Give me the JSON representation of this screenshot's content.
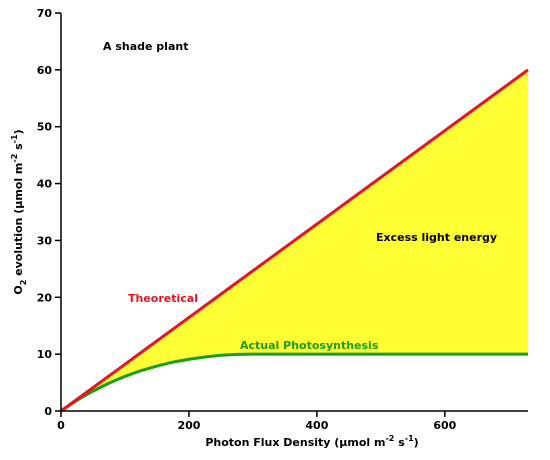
{
  "chart_data": {
    "type": "area",
    "xlabel": "Photon Flux Density (μmol m",
    "xlabel_sup1": "-2",
    "xlabel_mid": " s",
    "xlabel_sup2": "-1",
    "xlabel_end": ")",
    "ylabel_o": "O",
    "ylabel_sub": "2",
    "ylabel_rest": " evolution (μmol m",
    "ylabel_sup1": "-2",
    "ylabel_mid": " s",
    "ylabel_sup2": "-1",
    "ylabel_end": ")",
    "xlim": [
      0,
      730
    ],
    "ylim": [
      0,
      70
    ],
    "x_ticks": [
      0,
      200,
      400,
      600
    ],
    "y_ticks": [
      0,
      10,
      20,
      30,
      40,
      50,
      60,
      70
    ],
    "x_tick_labels": [
      "0",
      "200",
      "400",
      "600"
    ],
    "y_tick_labels": [
      "0",
      "10",
      "20",
      "30",
      "40",
      "50",
      "60",
      "70"
    ],
    "grid": false,
    "series": [
      {
        "name": "Theoretical",
        "color": "#e8141e",
        "x": [
          0,
          730
        ],
        "y": [
          0,
          60
        ]
      },
      {
        "name": "Actual  Photosynthesis",
        "color": "#179c17",
        "x": [
          0,
          25,
          50,
          75,
          100,
          125,
          150,
          175,
          200,
          225,
          250,
          275,
          300,
          350,
          400,
          450,
          500,
          550,
          600,
          650,
          700,
          730
        ],
        "y": [
          0,
          1.9,
          3.5,
          4.9,
          6.1,
          7.1,
          7.9,
          8.6,
          9.1,
          9.5,
          9.8,
          9.95,
          10,
          10,
          10,
          10,
          10,
          10,
          10,
          10,
          10,
          10
        ]
      }
    ],
    "fill_region": {
      "label": "Excess light energy",
      "color": "#ffff33",
      "between": [
        "Theoretical",
        "Actual  Photosynthesis"
      ]
    },
    "annotations": [
      {
        "text": "A shade plant",
        "color": "#000000"
      },
      {
        "text": "Excess light energy",
        "color": "#000000"
      },
      {
        "text": "Theoretical",
        "color": "#e8141e"
      },
      {
        "text": "Actual  Photosynthesis",
        "color": "#179c17"
      }
    ]
  }
}
